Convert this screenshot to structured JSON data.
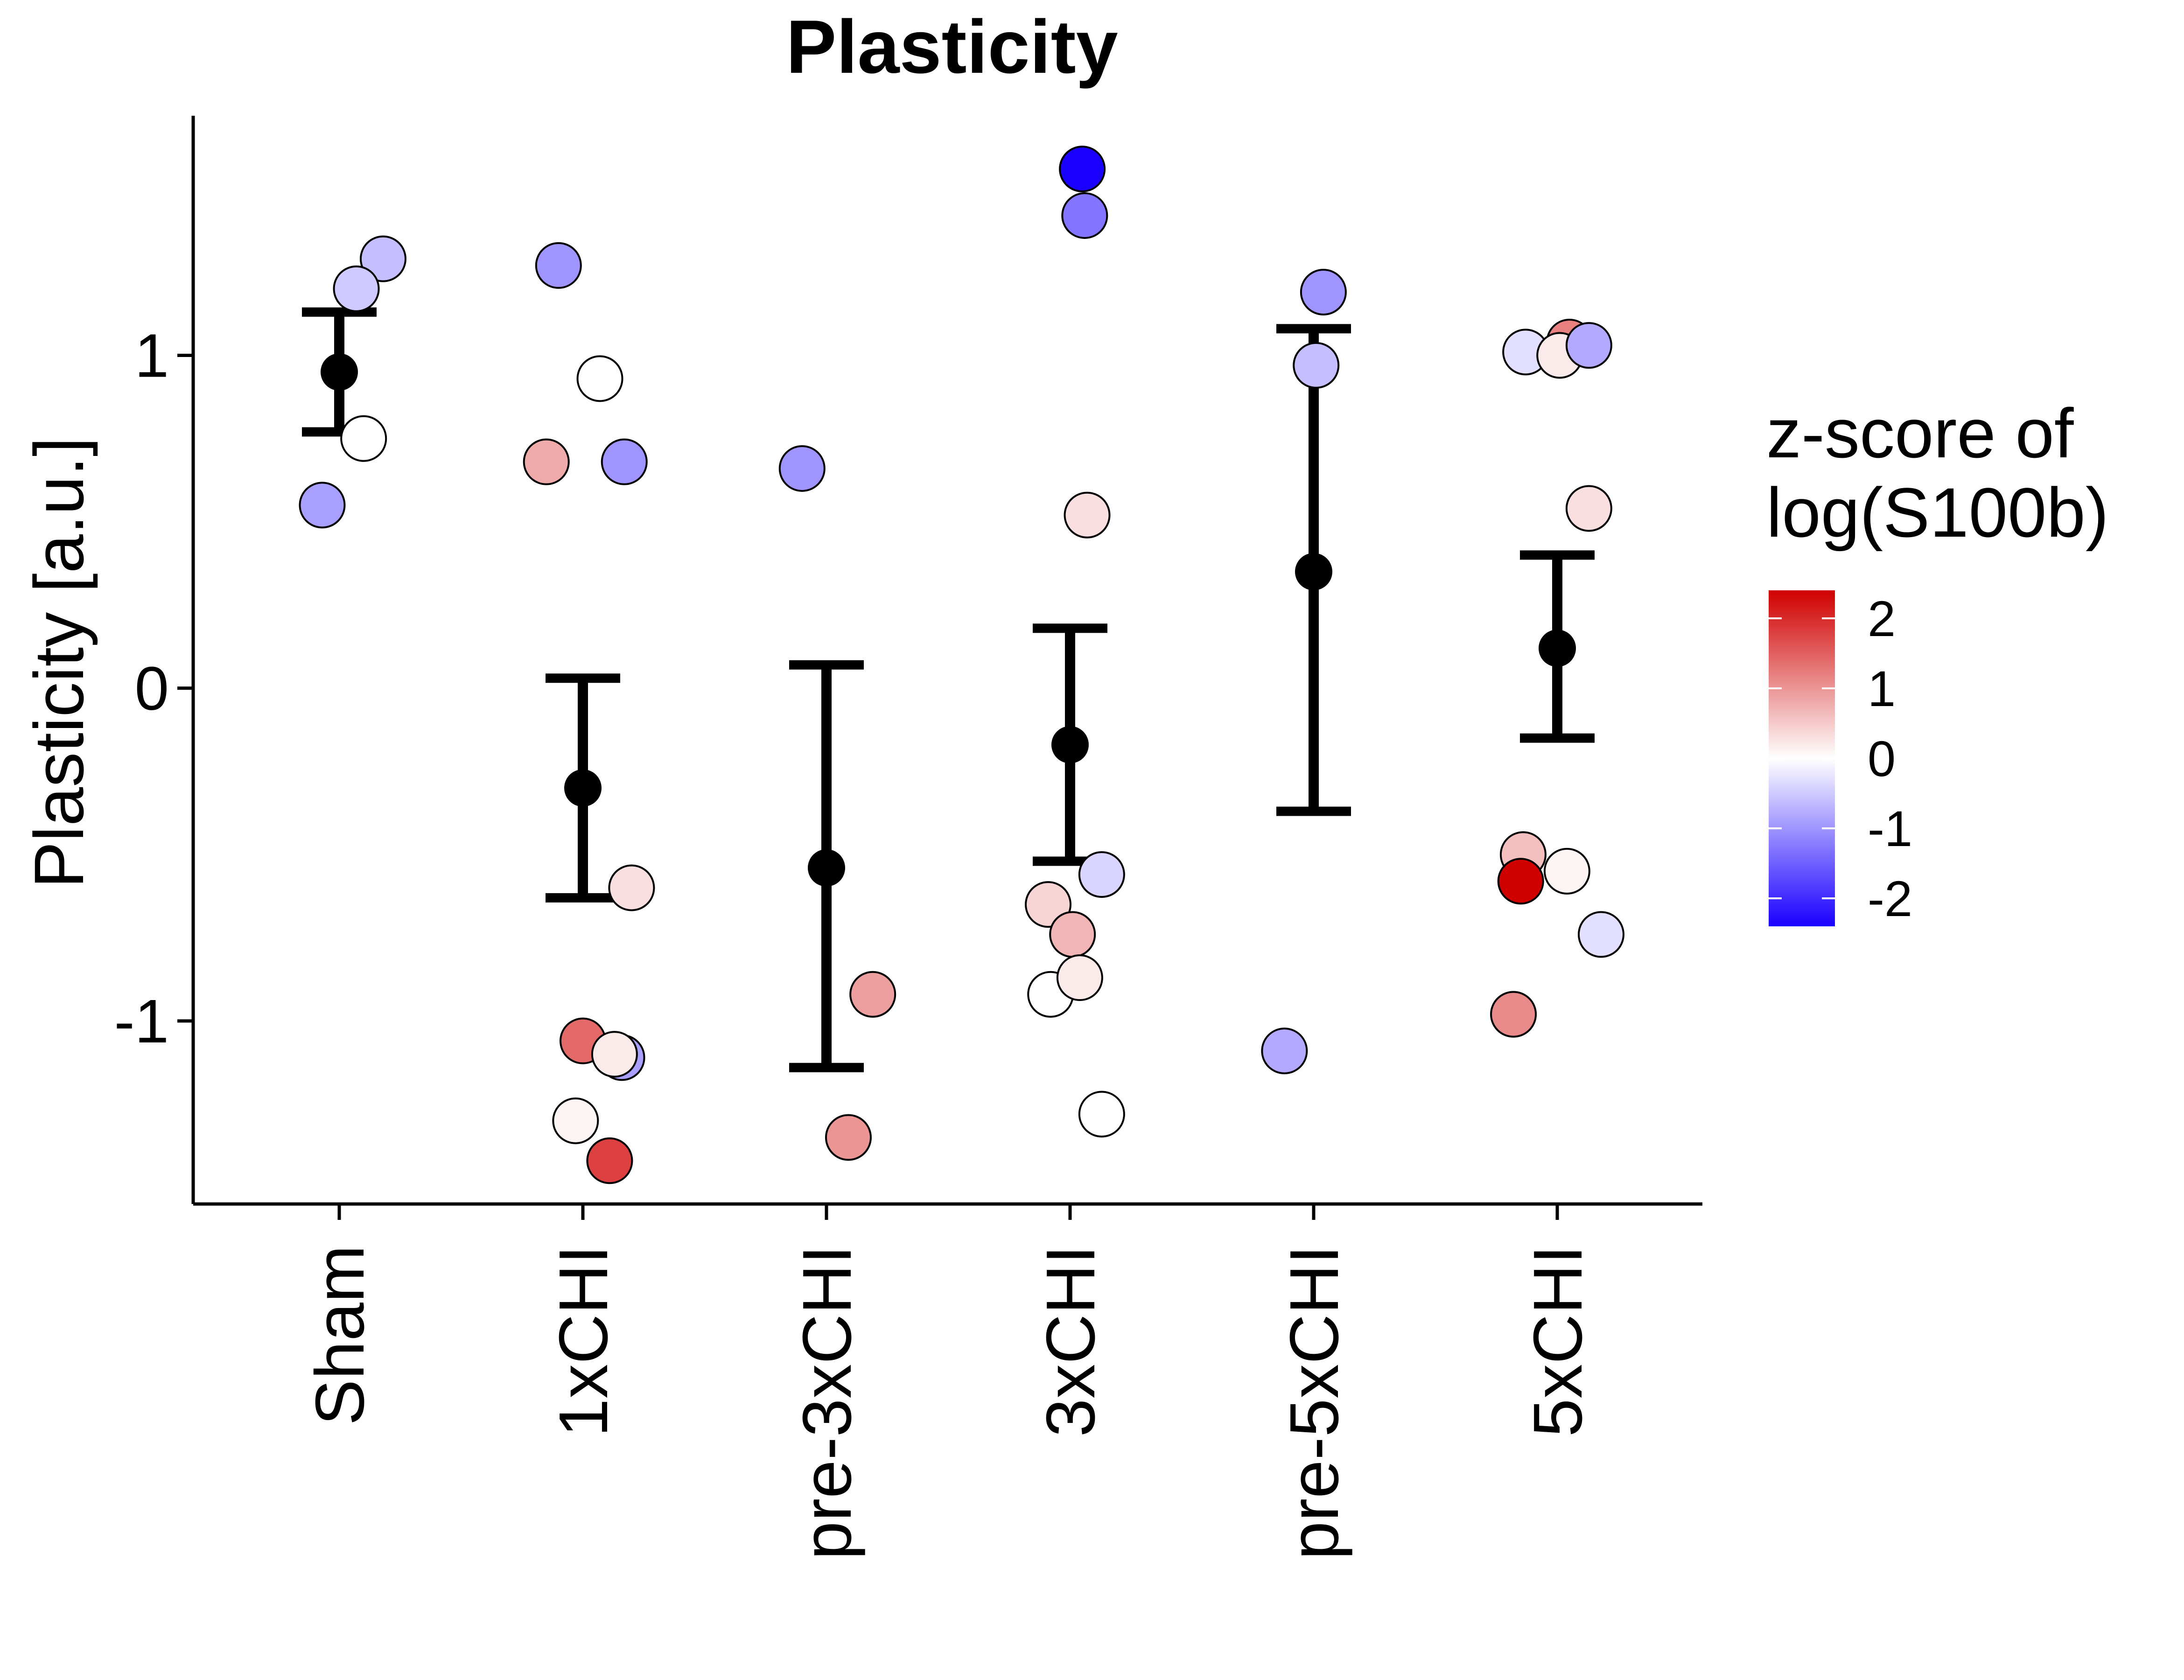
{
  "chart_data": {
    "type": "scatter",
    "title": "Plasticity",
    "xlabel": "",
    "ylabel": "Plasticity [a.u.]",
    "ylim": [
      -1.55,
      1.72
    ],
    "yticks": [
      -1,
      0,
      1
    ],
    "ytick_labels": [
      "-1",
      "0",
      "1"
    ],
    "categories": [
      "Sham",
      "1xCHI",
      "pre-3xCHI",
      "3xCHI",
      "pre-5xCHI",
      "5xCHI"
    ],
    "summary": [
      {
        "group": "Sham",
        "mean": 0.95,
        "low": 0.77,
        "high": 1.13
      },
      {
        "group": "1xCHI",
        "mean": -0.3,
        "low": -0.63,
        "high": 0.03
      },
      {
        "group": "pre-3xCHI",
        "mean": -0.54,
        "low": -1.14,
        "high": 0.07
      },
      {
        "group": "3xCHI",
        "mean": -0.17,
        "low": -0.52,
        "high": 0.18
      },
      {
        "group": "pre-5xCHI",
        "mean": 0.35,
        "low": -0.37,
        "high": 1.08
      },
      {
        "group": "5xCHI",
        "mean": 0.12,
        "low": -0.15,
        "high": 0.4
      }
    ],
    "points": [
      {
        "group": "Sham",
        "x": 1.18,
        "y": 1.29,
        "z": -0.6
      },
      {
        "group": "Sham",
        "x": 1.07,
        "y": 1.2,
        "z": -0.5
      },
      {
        "group": "Sham",
        "x": 1.1,
        "y": 0.75,
        "z": 0.0
      },
      {
        "group": "Sham",
        "x": 0.93,
        "y": 0.55,
        "z": -0.9
      },
      {
        "group": "1xCHI",
        "x": 1.9,
        "y": 1.27,
        "z": -1.0
      },
      {
        "group": "1xCHI",
        "x": 2.07,
        "y": 0.93,
        "z": 0.0
      },
      {
        "group": "1xCHI",
        "x": 1.85,
        "y": 0.68,
        "z": 0.8
      },
      {
        "group": "1xCHI",
        "x": 2.17,
        "y": 0.68,
        "z": -1.0
      },
      {
        "group": "1xCHI",
        "x": 2.2,
        "y": -0.6,
        "z": 0.3
      },
      {
        "group": "1xCHI",
        "x": 2.0,
        "y": -1.06,
        "z": 1.4
      },
      {
        "group": "1xCHI",
        "x": 2.16,
        "y": -1.11,
        "z": -0.9
      },
      {
        "group": "1xCHI",
        "x": 2.13,
        "y": -1.1,
        "z": 0.2
      },
      {
        "group": "1xCHI",
        "x": 1.97,
        "y": -1.3,
        "z": 0.1
      },
      {
        "group": "1xCHI",
        "x": 2.11,
        "y": -1.42,
        "z": 1.8
      },
      {
        "group": "pre-3xCHI",
        "x": 2.9,
        "y": 0.66,
        "z": -1.0
      },
      {
        "group": "pre-3xCHI",
        "x": 3.19,
        "y": -0.92,
        "z": 0.9
      },
      {
        "group": "pre-3xCHI",
        "x": 3.09,
        "y": -1.35,
        "z": 1.0
      },
      {
        "group": "3xCHI",
        "x": 4.05,
        "y": 1.56,
        "z": -2.4
      },
      {
        "group": "3xCHI",
        "x": 4.06,
        "y": 1.42,
        "z": -1.3
      },
      {
        "group": "3xCHI",
        "x": 4.07,
        "y": 0.52,
        "z": 0.3
      },
      {
        "group": "3xCHI",
        "x": 4.13,
        "y": -0.56,
        "z": -0.4
      },
      {
        "group": "3xCHI",
        "x": 3.91,
        "y": -0.65,
        "z": 0.4
      },
      {
        "group": "3xCHI",
        "x": 4.01,
        "y": -0.74,
        "z": 0.7
      },
      {
        "group": "3xCHI",
        "x": 3.92,
        "y": -0.92,
        "z": 0.0
      },
      {
        "group": "3xCHI",
        "x": 4.04,
        "y": -0.87,
        "z": 0.2
      },
      {
        "group": "3xCHI",
        "x": 4.13,
        "y": -1.28,
        "z": 0.0
      },
      {
        "group": "pre-5xCHI",
        "x": 5.04,
        "y": 1.19,
        "z": -1.0
      },
      {
        "group": "pre-5xCHI",
        "x": 5.01,
        "y": 0.97,
        "z": -0.6
      },
      {
        "group": "pre-5xCHI",
        "x": 4.88,
        "y": -1.09,
        "z": -0.8
      },
      {
        "group": "5xCHI",
        "x": 5.87,
        "y": 1.01,
        "z": -0.3
      },
      {
        "group": "5xCHI",
        "x": 6.05,
        "y": 1.04,
        "z": 1.2
      },
      {
        "group": "5xCHI",
        "x": 6.01,
        "y": 1.0,
        "z": 0.2
      },
      {
        "group": "5xCHI",
        "x": 6.13,
        "y": 1.03,
        "z": -0.8
      },
      {
        "group": "5xCHI",
        "x": 6.13,
        "y": 0.54,
        "z": 0.3
      },
      {
        "group": "5xCHI",
        "x": 5.86,
        "y": -0.5,
        "z": 0.6
      },
      {
        "group": "5xCHI",
        "x": 6.04,
        "y": -0.55,
        "z": 0.1
      },
      {
        "group": "5xCHI",
        "x": 5.85,
        "y": -0.58,
        "z": 2.4
      },
      {
        "group": "5xCHI",
        "x": 6.18,
        "y": -0.74,
        "z": -0.3
      },
      {
        "group": "5xCHI",
        "x": 5.82,
        "y": -0.98,
        "z": 1.1
      }
    ],
    "legend": {
      "title_line1": "z-score of",
      "title_line2": "log(S100b)",
      "position": "right",
      "range": [
        -2.4,
        2.4
      ],
      "ticks": [
        2,
        1,
        0,
        -1,
        -2
      ],
      "tick_labels": [
        "2",
        "1",
        "0",
        "-1",
        "-2"
      ],
      "colors": {
        "high": "#d00000",
        "mid": "#ffffff",
        "low": "#1a00ff"
      }
    },
    "grid": false
  }
}
